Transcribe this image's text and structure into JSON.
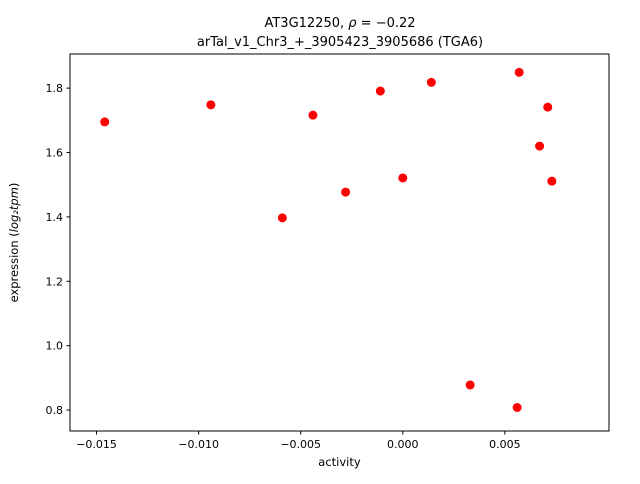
{
  "chart_data": {
    "type": "scatter",
    "title": {
      "line1_prefix": "AT3G12250, ",
      "line1_rho": "ρ",
      "line1_rest": " = −0.22",
      "line2": "arTal_v1_Chr3_+_3905423_3905686 (TGA6)"
    },
    "xlabel": "activity",
    "ylabel": {
      "prefix": "expression (",
      "math": "log₂tpm",
      "suffix": ")"
    },
    "xlim": [
      -0.0163,
      0.0101
    ],
    "ylim": [
      0.735,
      1.906
    ],
    "x_ticks": [
      -0.015,
      -0.01,
      -0.005,
      0,
      0.005
    ],
    "x_tick_labels": [
      "−0.015",
      "−0.010",
      "−0.005",
      "0.000",
      "0.005"
    ],
    "y_ticks": [
      0.8,
      1.0,
      1.2,
      1.4,
      1.6,
      1.8
    ],
    "y_tick_labels": [
      "0.8",
      "1.0",
      "1.2",
      "1.4",
      "1.6",
      "1.8"
    ],
    "grid": false,
    "legend": "none",
    "marker_color": "#ff0000",
    "marker_radius_px": 4.5,
    "points": [
      [
        -0.0146,
        1.695
      ],
      [
        -0.0094,
        1.748
      ],
      [
        -0.0059,
        1.397
      ],
      [
        -0.0044,
        1.716
      ],
      [
        -0.0028,
        1.477
      ],
      [
        -0.0011,
        1.791
      ],
      [
        0.0,
        1.521
      ],
      [
        0.0014,
        1.818
      ],
      [
        0.0033,
        0.878
      ],
      [
        0.0056,
        0.808
      ],
      [
        0.0057,
        1.849
      ],
      [
        0.0067,
        1.62
      ],
      [
        0.0071,
        1.741
      ],
      [
        0.0073,
        1.511
      ]
    ]
  }
}
